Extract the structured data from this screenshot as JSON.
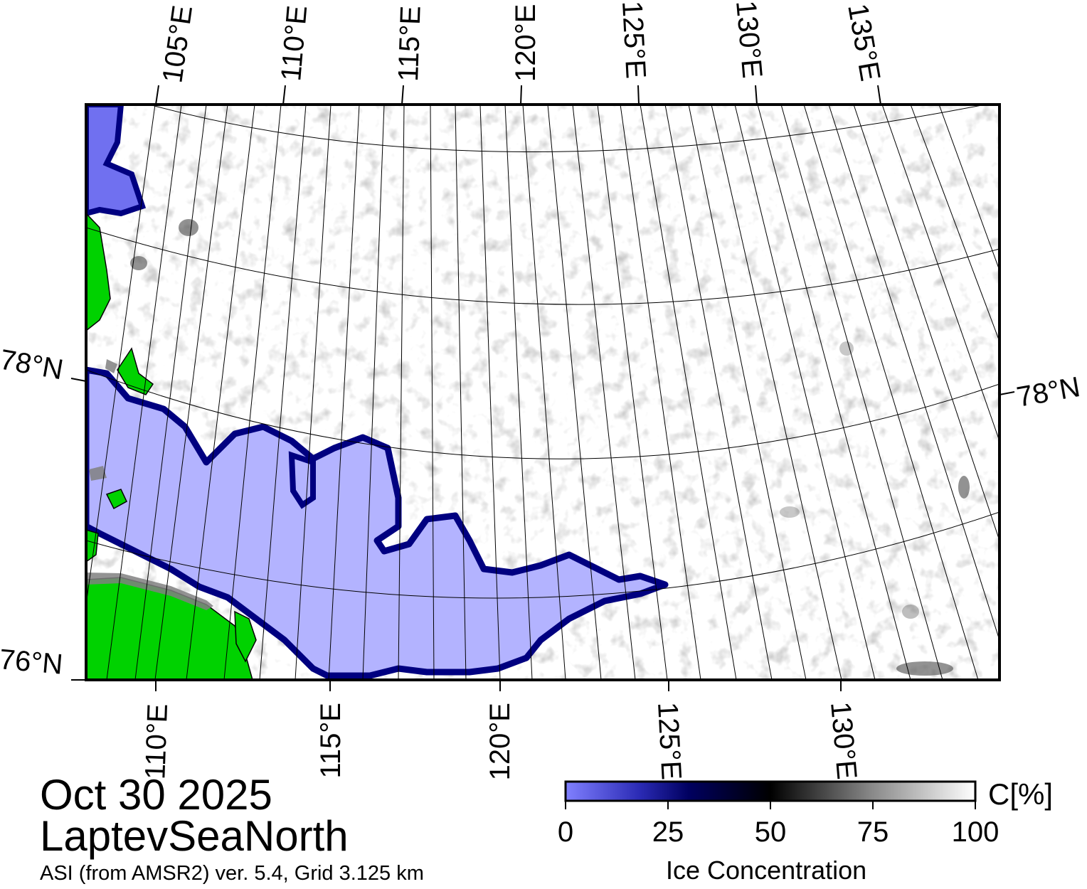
{
  "map": {
    "date": "Oct 30 2025",
    "region": "LaptevSeaNorth",
    "product": "ASI (from AMSR2) ver. 5.4,  Grid 3.125 km",
    "lat_labels": [
      "78°N",
      "76°N",
      "78°N"
    ],
    "lon_labels_top": [
      "105°E",
      "110°E",
      "115°E",
      "120°E",
      "125°E",
      "130°E",
      "135°E"
    ],
    "lon_labels_bottom": [
      "110°E",
      "115°E",
      "120°E",
      "125°E",
      "130°E"
    ],
    "colors": {
      "open_water": "#b3b3ff",
      "ice_low": "#6a6af5",
      "ice_mid": "#000060",
      "ice_50": "#000000",
      "ice_full": "#ffffff",
      "land": "#00d200",
      "coast_mask": "#808080"
    }
  },
  "colorbar": {
    "title": "Ice Concentration",
    "unit": "C[%]",
    "ticks": [
      "0",
      "25",
      "50",
      "75",
      "100"
    ]
  }
}
